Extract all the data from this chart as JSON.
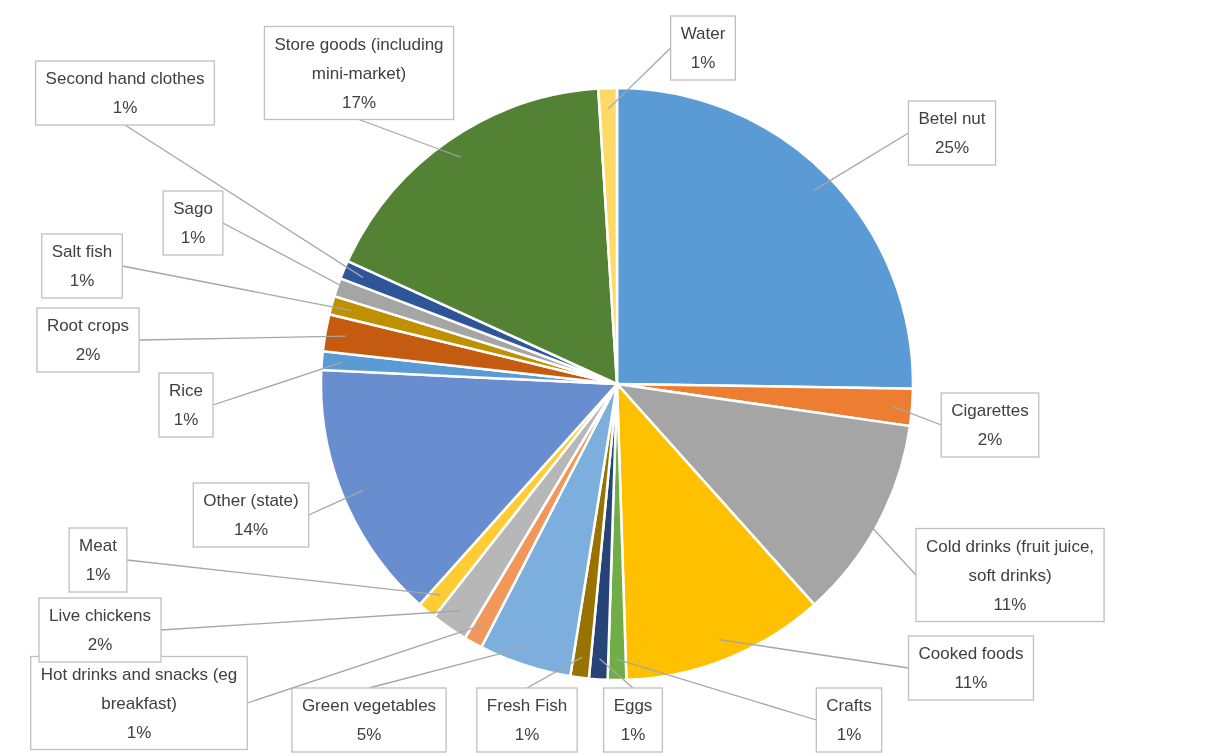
{
  "chart_data": {
    "type": "pie",
    "categories": [
      "Betel nut",
      "Cigarettes",
      "Cold drinks (fruit juice, soft drinks)",
      "Cooked foods",
      "Crafts",
      "Eggs",
      "Fresh Fish",
      "Green vegetables",
      "Hot drinks and snacks (eg breakfast)",
      "Live chickens",
      "Meat",
      "Other (state)",
      "Rice",
      "Root crops",
      "Salt fish",
      "Sago",
      "Second hand clothes",
      "Store goods (including mini-market)",
      "Water"
    ],
    "values": [
      25,
      2,
      11,
      11,
      1,
      1,
      1,
      5,
      1,
      2,
      1,
      14,
      1,
      2,
      1,
      1,
      1,
      17,
      1
    ],
    "value_labels": [
      "25%",
      "2%",
      "11%",
      "11%",
      "1%",
      "1%",
      "1%",
      "5%",
      "1%",
      "2%",
      "1%",
      "14%",
      "1%",
      "2%",
      "1%",
      "1%",
      "1%",
      "17%",
      "1%"
    ],
    "colors": [
      "#5b9bd5",
      "#ed7d31",
      "#a5a5a5",
      "#ffc000",
      "#70ad47",
      "#264478",
      "#997300",
      "#7cafdd",
      "#f1975a",
      "#b7b7b7",
      "#ffcd33",
      "#698ed0",
      "#5b9bd5",
      "#c55a11",
      "#bf9000",
      "#a5a5a5",
      "#2e5597",
      "#548235",
      "#ffd966"
    ]
  }
}
